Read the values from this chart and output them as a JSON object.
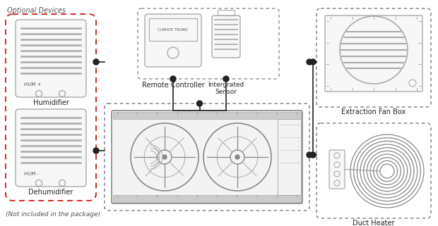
{
  "bg_color": "#ffffff",
  "optional_devices_label": "Optional Devices",
  "not_included_label": "(Not included in the package)",
  "humidifier_label": "Humidifier",
  "dehumidifier_label": "Dehumidifier",
  "remote_controller_label": "Remote Controller",
  "sensor_label": "Intergrated\nSensor",
  "extraction_fan_label": "Extraction Fan Box",
  "duct_heater_label": "Duct Heater",
  "hum_plus": "HUM +",
  "hum_minus": "HUM -",
  "climate_tronic_label": "CLIMATE TRONIC",
  "red_dashed_color": "#dd2222",
  "gray_dashed_color": "#888888",
  "light_gray": "#cccccc",
  "medium_gray": "#aaaaaa",
  "dark_gray": "#555555",
  "line_color": "#222222",
  "device_fill": "#f7f7f7"
}
